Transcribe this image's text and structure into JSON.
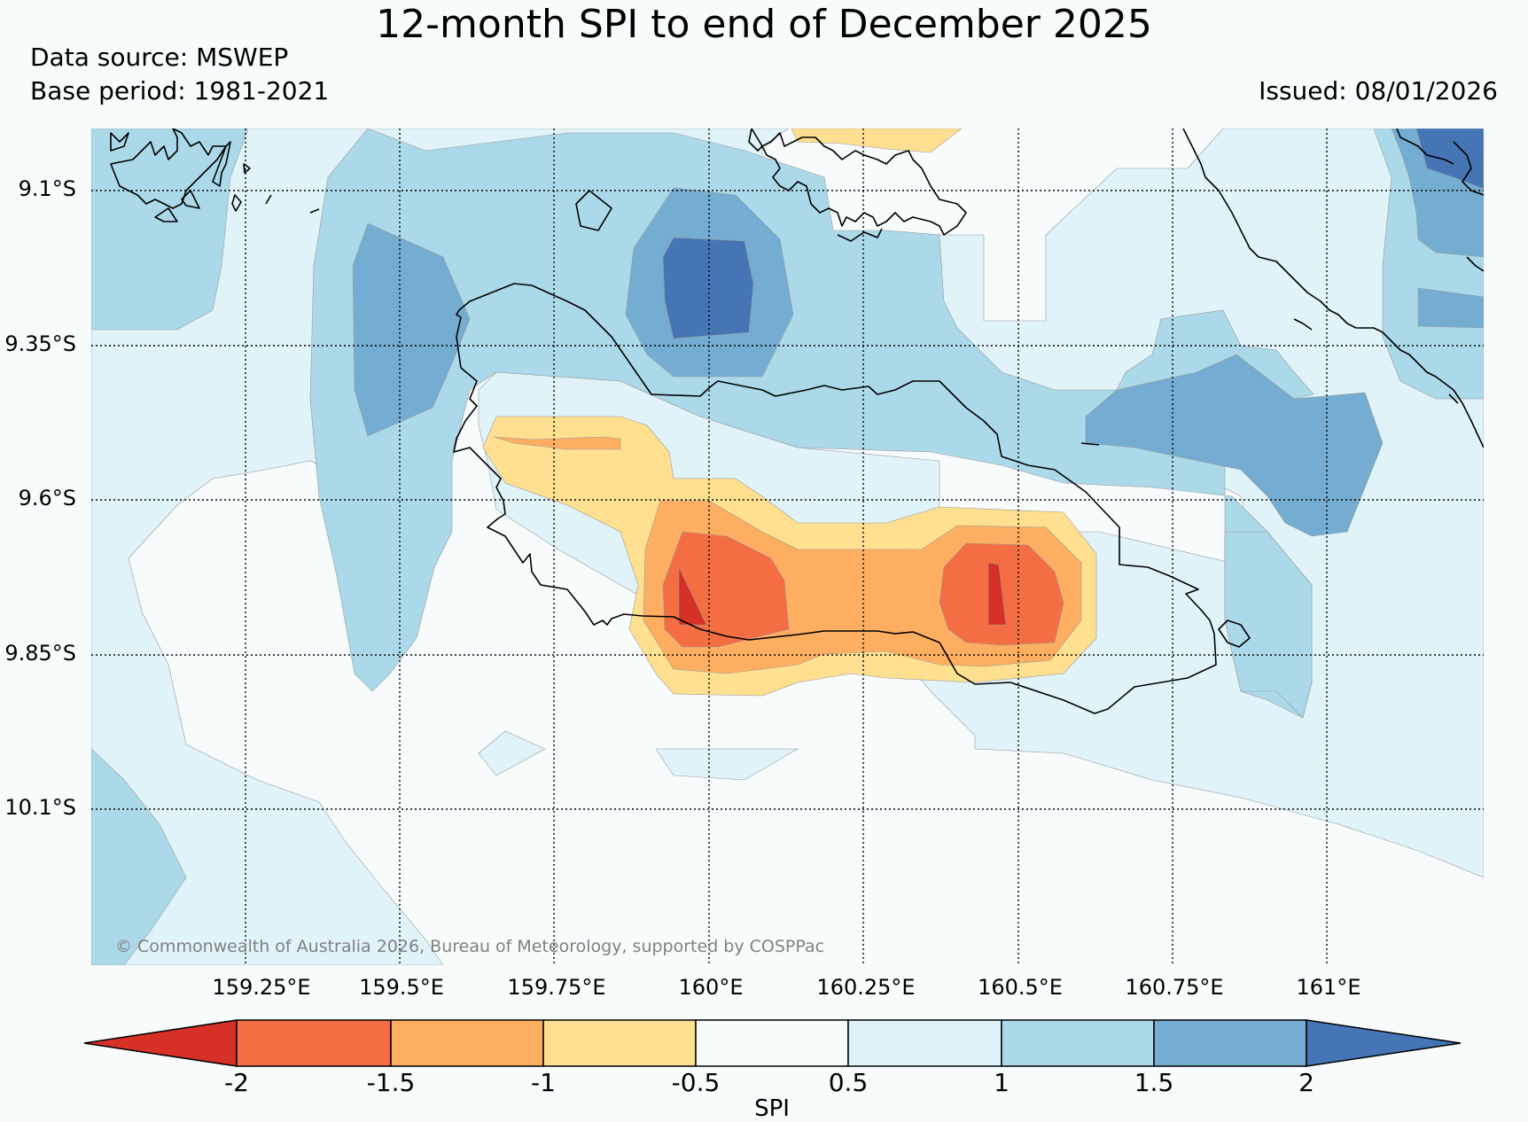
{
  "title": "12-month SPI to end of December 2025",
  "data_source": "Data source: MSWEP",
  "base_period": "Base period: 1981-2021",
  "issued": "Issued: 08/01/2026",
  "copyright": "© Commonwealth of Australia 2026, Bureau of Meteorology, supported by COSPPac",
  "lon_labels": [
    "159.25°E",
    "159.5°E",
    "159.75°E",
    "160°E",
    "160.25°E",
    "160.5°E",
    "160.75°E",
    "161°E"
  ],
  "lat_labels": [
    "9.1°S",
    "9.35°S",
    "9.6°S",
    "9.85°S",
    "10.1°S"
  ],
  "colorbar": {
    "label": "SPI",
    "ticks": [
      "-2",
      "-1.5",
      "-1",
      "-0.5",
      "0.5",
      "1",
      "1.5",
      "2"
    ],
    "colors": [
      "#d73027",
      "#f46d43",
      "#fdae61",
      "#fee090",
      "#f7fbfb",
      "#e0f3f8",
      "#abd9e9",
      "#74add1",
      "#4575b4"
    ]
  },
  "legend_colors": {
    "extremely_dry": "#d73027",
    "severely_dry": "#f46d43",
    "moderately_dry": "#fdae61",
    "mildly_dry": "#fee090",
    "near_normal": "#f7fbfb",
    "mildly_wet": "#e0f3f8",
    "moderately_wet": "#abd9e9",
    "very_wet": "#74add1",
    "extremely_wet": "#4575b4"
  }
}
